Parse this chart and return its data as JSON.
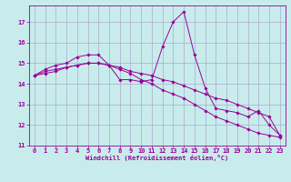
{
  "xlabel": "Windchill (Refroidissement éolien,°C)",
  "ylabel": "",
  "background_color": "#c8ecec",
  "grid_color": "#aaaacc",
  "line_color": "#990099",
  "xlim": [
    -0.5,
    23.5
  ],
  "ylim": [
    11,
    17.8
  ],
  "yticks": [
    11,
    12,
    13,
    14,
    15,
    16,
    17
  ],
  "xticks": [
    0,
    1,
    2,
    3,
    4,
    5,
    6,
    7,
    8,
    9,
    10,
    11,
    12,
    13,
    14,
    15,
    16,
    17,
    18,
    19,
    20,
    21,
    22,
    23
  ],
  "series1_x": [
    0,
    1,
    2,
    3,
    4,
    5,
    6,
    7,
    8,
    9,
    10,
    11,
    12,
    13,
    14,
    15,
    16,
    17,
    18,
    19,
    20,
    21,
    22,
    23
  ],
  "series1_y": [
    14.4,
    14.7,
    14.9,
    15.0,
    15.3,
    15.4,
    15.4,
    14.9,
    14.2,
    14.2,
    14.1,
    14.2,
    15.8,
    17.0,
    17.5,
    15.4,
    13.8,
    12.8,
    12.7,
    12.6,
    12.4,
    12.7,
    12.0,
    11.5
  ],
  "series2_x": [
    0,
    1,
    2,
    3,
    4,
    5,
    6,
    7,
    8,
    9,
    10,
    11,
    12,
    13,
    14,
    15,
    16,
    17,
    18,
    19,
    20,
    21,
    22,
    23
  ],
  "series2_y": [
    14.4,
    14.6,
    14.7,
    14.8,
    14.9,
    15.0,
    15.0,
    14.9,
    14.8,
    14.6,
    14.5,
    14.4,
    14.2,
    14.1,
    13.9,
    13.7,
    13.5,
    13.3,
    13.2,
    13.0,
    12.8,
    12.6,
    12.4,
    11.5
  ],
  "series3_x": [
    0,
    1,
    2,
    3,
    4,
    5,
    6,
    7,
    8,
    9,
    10,
    11,
    12,
    13,
    14,
    15,
    16,
    17,
    18,
    19,
    20,
    21,
    22,
    23
  ],
  "series3_y": [
    14.4,
    14.5,
    14.6,
    14.8,
    14.9,
    15.0,
    15.0,
    14.9,
    14.7,
    14.5,
    14.2,
    14.0,
    13.7,
    13.5,
    13.3,
    13.0,
    12.7,
    12.4,
    12.2,
    12.0,
    11.8,
    11.6,
    11.5,
    11.4
  ],
  "tick_fontsize": 5,
  "xlabel_fontsize": 5,
  "marker_size": 1.8,
  "line_width": 0.7
}
